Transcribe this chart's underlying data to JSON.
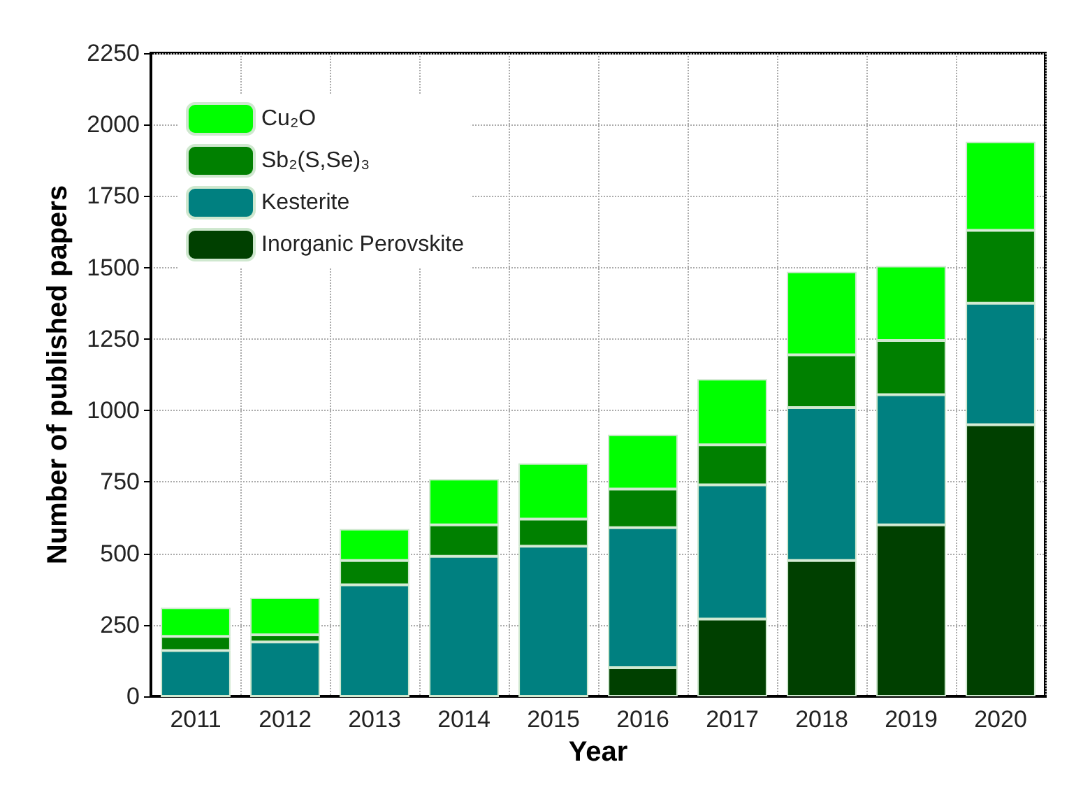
{
  "chart_data": {
    "type": "bar",
    "stacked": true,
    "xlabel": "Year",
    "ylabel": "Number of published papers",
    "categories": [
      "2011",
      "2012",
      "2013",
      "2014",
      "2015",
      "2016",
      "2017",
      "2018",
      "2019",
      "2020"
    ],
    "series": [
      {
        "name": "Inorganic Perovskite",
        "color": "#004000",
        "values": [
          0,
          0,
          0,
          0,
          0,
          100,
          270,
          475,
          600,
          950
        ]
      },
      {
        "name": "Kesterite",
        "color": "#008080",
        "values": [
          160,
          190,
          390,
          490,
          525,
          490,
          470,
          535,
          455,
          425
        ]
      },
      {
        "name": "Sb₂(S,Se)₃",
        "color": "#008000",
        "values": [
          50,
          25,
          85,
          110,
          95,
          135,
          140,
          185,
          190,
          255
        ]
      },
      {
        "name": "Cu₂O",
        "color": "#00ff00",
        "values": [
          100,
          130,
          110,
          160,
          195,
          190,
          230,
          290,
          260,
          310
        ]
      }
    ],
    "ylim": [
      0,
      2250
    ],
    "yticks": [
      0,
      250,
      500,
      750,
      1000,
      1250,
      1500,
      1750,
      2000,
      2250
    ],
    "grid": true,
    "legend": "top left"
  }
}
